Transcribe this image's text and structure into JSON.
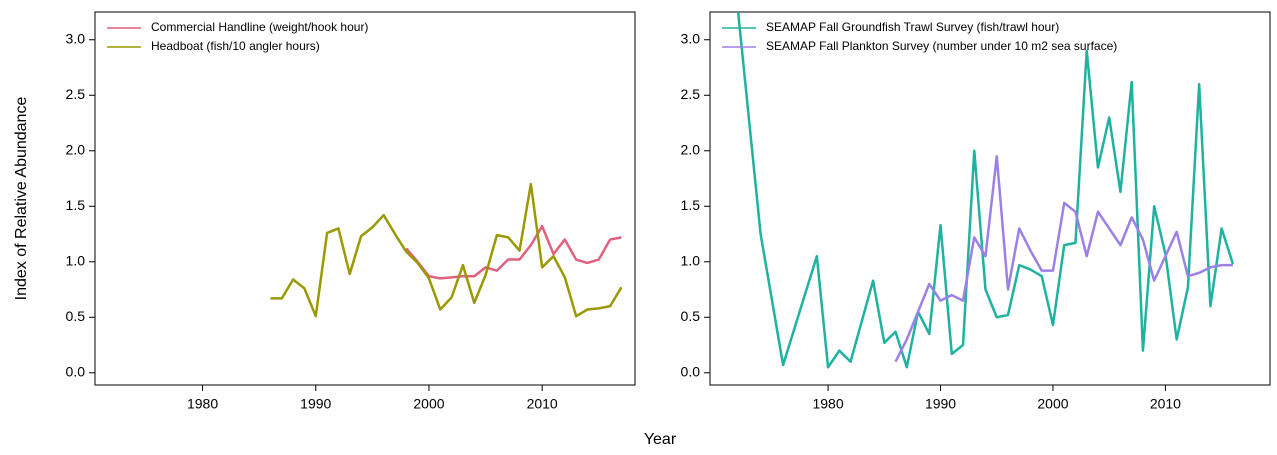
{
  "x_label": "Year",
  "chart_data": [
    {
      "type": "line",
      "y_label": "Index of Relative Abundance",
      "xlim": [
        1970.5,
        2018.2
      ],
      "ylim": [
        -0.11,
        3.25
      ],
      "xticks": [
        1980,
        1990,
        2000,
        2010
      ],
      "yticks": [
        {
          "value": 0,
          "label": "0.0"
        },
        0.5,
        {
          "value": 1,
          "label": "1.0"
        },
        1.5,
        {
          "value": 2,
          "label": "2.0"
        },
        2.5,
        {
          "value": 3,
          "label": "3.0"
        }
      ],
      "legend": "top-left",
      "series": [
        {
          "name": "Commercial Handline (weight/hook hour)",
          "color": "#e0607e",
          "x": [
            1998,
            1999,
            2000,
            2001,
            2002,
            2003,
            2004,
            2005,
            2006,
            2007,
            2008,
            2009,
            2010,
            2011,
            2012,
            2013,
            2014,
            2015,
            2016,
            2017
          ],
          "values": [
            1.12,
            1.0,
            0.87,
            0.85,
            0.86,
            0.87,
            0.87,
            0.95,
            0.92,
            1.02,
            1.02,
            1.15,
            1.32,
            1.07,
            1.2,
            1.02,
            0.99,
            1.02,
            1.2,
            1.22
          ]
        },
        {
          "name": "Headboat (fish/10 angler hours)",
          "color": "#9a9a00",
          "x": [
            1986,
            1987,
            1988,
            1989,
            1990,
            1991,
            1992,
            1993,
            1994,
            1995,
            1996,
            1997,
            1998,
            1999,
            2000,
            2001,
            2002,
            2003,
            2004,
            2005,
            2006,
            2007,
            2008,
            2009,
            2010,
            2011,
            2012,
            2013,
            2014,
            2015,
            2016,
            2017
          ],
          "values": [
            0.67,
            0.67,
            0.84,
            0.76,
            0.51,
            1.26,
            1.3,
            0.89,
            1.23,
            1.31,
            1.42,
            1.25,
            1.09,
            0.99,
            0.85,
            0.57,
            0.68,
            0.97,
            0.63,
            0.88,
            1.24,
            1.22,
            1.1,
            1.7,
            0.95,
            1.05,
            0.86,
            0.51,
            0.57,
            0.58,
            0.6,
            0.77
          ]
        }
      ]
    },
    {
      "type": "line",
      "xlim": [
        1969.5,
        2019.3
      ],
      "ylim": [
        -0.11,
        3.25
      ],
      "xticks": [
        1980,
        1990,
        2000,
        2010
      ],
      "yticks": [
        {
          "value": 0,
          "label": "0.0"
        },
        0.5,
        {
          "value": 1,
          "label": "1.0"
        },
        1.5,
        {
          "value": 2,
          "label": "2.0"
        },
        2.5,
        {
          "value": 3,
          "label": "3.0"
        }
      ],
      "legend": "top-left",
      "series": [
        {
          "name": "SEAMAP Fall Groundfish Trawl Survey (fish/trawl hour)",
          "color": "#20b2a0",
          "x": [
            1972,
            1974,
            1976,
            1979,
            1980,
            1981,
            1982,
            1984,
            1985,
            1986,
            1987,
            1988,
            1989,
            1990,
            1991,
            1992,
            1993,
            1994,
            1995,
            1996,
            1997,
            1998,
            1999,
            2000,
            2001,
            2002,
            2003,
            2004,
            2005,
            2006,
            2007,
            2008,
            2009,
            2010,
            2011,
            2012,
            2013,
            2014,
            2015,
            2016
          ],
          "values": [
            3.25,
            1.25,
            0.07,
            1.05,
            0.05,
            0.2,
            0.1,
            0.83,
            0.27,
            0.37,
            0.05,
            0.55,
            0.35,
            1.33,
            0.17,
            0.25,
            2.0,
            0.75,
            0.5,
            0.52,
            0.97,
            0.93,
            0.87,
            0.43,
            1.15,
            1.17,
            2.9,
            1.85,
            2.3,
            1.63,
            2.62,
            0.2,
            1.5,
            1.07,
            0.3,
            0.77,
            2.6,
            0.6,
            1.3,
            0.98
          ]
        },
        {
          "name": "SEAMAP Fall Plankton Survey (number under 10 m2 sea surface)",
          "color": "#9d80e6",
          "x": [
            1986,
            1987,
            1988,
            1989,
            1990,
            1991,
            1992,
            1993,
            1994,
            1995,
            1996,
            1997,
            1998,
            1999,
            2000,
            2001,
            2002,
            2003,
            2004,
            2005,
            2006,
            2007,
            2008,
            2009,
            2010,
            2011,
            2012,
            2013,
            2014,
            2015,
            2016
          ],
          "values": [
            0.1,
            0.3,
            0.55,
            0.8,
            0.65,
            0.7,
            0.65,
            1.22,
            1.05,
            1.95,
            0.75,
            1.3,
            1.1,
            0.92,
            0.92,
            1.53,
            1.45,
            1.05,
            1.45,
            1.3,
            1.15,
            1.4,
            1.2,
            0.83,
            1.05,
            1.27,
            0.87,
            0.9,
            0.95,
            0.97,
            0.97
          ]
        }
      ]
    }
  ]
}
